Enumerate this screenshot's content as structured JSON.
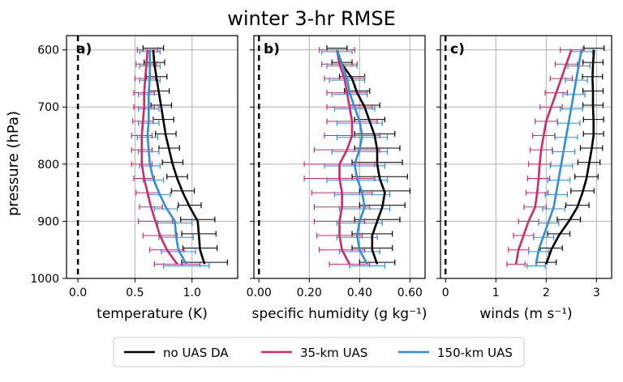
{
  "figure": {
    "title": "winter 3-hr RMSE",
    "ylabel": "pressure (hPa)",
    "legend_position": "bottom-center",
    "legend": [
      {
        "label": "no UAS DA",
        "color": "#000000"
      },
      {
        "label": "35-km UAS",
        "color": "#cc2a6b"
      },
      {
        "label": "150-km UAS",
        "color": "#2f8fd8"
      }
    ]
  },
  "chart_data": [
    {
      "type": "line",
      "panel": "a)",
      "xlabel": "temperature (K)",
      "xlim": [
        -0.1,
        1.4
      ],
      "xticks": [
        0.0,
        0.5,
        1.0
      ],
      "xtick_labels": [
        "0.0",
        "0.5",
        "1.0"
      ],
      "ylabel": "pressure (hPa)",
      "ylim": [
        1000,
        575
      ],
      "yticks": [
        600,
        700,
        800,
        900,
        1000
      ],
      "ytick_labels": [
        "600",
        "700",
        "800",
        "900",
        "1000"
      ],
      "grid": true,
      "zero_line": 0.0,
      "y": [
        600,
        625,
        650,
        675,
        700,
        725,
        750,
        775,
        800,
        825,
        850,
        875,
        900,
        925,
        950,
        975
      ],
      "series": [
        {
          "name": "no UAS DA",
          "color": "#000000",
          "values": [
            0.66,
            0.67,
            0.69,
            0.71,
            0.73,
            0.75,
            0.77,
            0.8,
            0.83,
            0.87,
            0.92,
            0.98,
            1.05,
            1.06,
            1.07,
            1.11
          ],
          "err": [
            0.09,
            0.09,
            0.09,
            0.09,
            0.09,
            0.09,
            0.09,
            0.09,
            0.09,
            0.09,
            0.1,
            0.1,
            0.15,
            0.15,
            0.15,
            0.2
          ]
        },
        {
          "name": "35-km UAS",
          "color": "#cc2a6b",
          "values": [
            0.61,
            0.6,
            0.59,
            0.58,
            0.58,
            0.57,
            0.56,
            0.56,
            0.56,
            0.58,
            0.61,
            0.64,
            0.68,
            0.72,
            0.78,
            0.87
          ],
          "err": [
            0.09,
            0.09,
            0.09,
            0.09,
            0.09,
            0.09,
            0.09,
            0.09,
            0.09,
            0.09,
            0.1,
            0.1,
            0.15,
            0.15,
            0.15,
            0.2
          ]
        },
        {
          "name": "150-km UAS",
          "color": "#2f8fd8",
          "values": [
            0.63,
            0.63,
            0.63,
            0.62,
            0.62,
            0.62,
            0.61,
            0.62,
            0.63,
            0.66,
            0.71,
            0.77,
            0.85,
            0.86,
            0.88,
            0.95
          ],
          "err": [
            0.09,
            0.09,
            0.09,
            0.09,
            0.09,
            0.09,
            0.09,
            0.09,
            0.09,
            0.09,
            0.1,
            0.1,
            0.15,
            0.15,
            0.15,
            0.2
          ]
        }
      ]
    },
    {
      "type": "line",
      "panel": "b)",
      "xlabel": "specific humidity (g kg⁻¹)",
      "xlim": [
        -0.02,
        0.66
      ],
      "xticks": [
        0.0,
        0.2,
        0.4,
        0.6
      ],
      "xtick_labels": [
        "0.00",
        "0.20",
        "0.40",
        "0.60"
      ],
      "ylim": [
        1000,
        575
      ],
      "grid": true,
      "zero_line": 0.0,
      "y": [
        600,
        625,
        650,
        675,
        700,
        725,
        750,
        775,
        800,
        825,
        850,
        875,
        900,
        925,
        950,
        975
      ],
      "series": [
        {
          "name": "no UAS DA",
          "color": "#000000",
          "values": [
            0.31,
            0.33,
            0.37,
            0.39,
            0.42,
            0.44,
            0.46,
            0.47,
            0.47,
            0.48,
            0.5,
            0.49,
            0.47,
            0.45,
            0.45,
            0.47
          ],
          "err": [
            0.04,
            0.04,
            0.05,
            0.05,
            0.06,
            0.06,
            0.08,
            0.09,
            0.1,
            0.11,
            0.1,
            0.09,
            0.09,
            0.08,
            0.08,
            0.07
          ]
        },
        {
          "name": "35-km UAS",
          "color": "#cc2a6b",
          "values": [
            0.31,
            0.32,
            0.34,
            0.35,
            0.36,
            0.37,
            0.37,
            0.35,
            0.32,
            0.32,
            0.33,
            0.33,
            0.32,
            0.32,
            0.33,
            0.36
          ],
          "err": [
            0.07,
            0.07,
            0.08,
            0.08,
            0.09,
            0.1,
            0.11,
            0.13,
            0.14,
            0.14,
            0.12,
            0.11,
            0.1,
            0.09,
            0.09,
            0.08
          ]
        },
        {
          "name": "150-km UAS",
          "color": "#2f8fd8",
          "values": [
            0.31,
            0.33,
            0.35,
            0.36,
            0.38,
            0.4,
            0.41,
            0.4,
            0.38,
            0.39,
            0.41,
            0.42,
            0.4,
            0.39,
            0.4,
            0.43
          ],
          "err": [
            0.06,
            0.06,
            0.07,
            0.07,
            0.08,
            0.09,
            0.1,
            0.11,
            0.12,
            0.12,
            0.11,
            0.1,
            0.09,
            0.08,
            0.08,
            0.07
          ]
        }
      ]
    },
    {
      "type": "line",
      "panel": "c)",
      "xlabel": "winds (m s⁻¹)",
      "xlim": [
        -0.1,
        3.3
      ],
      "xticks": [
        0,
        1,
        2,
        3
      ],
      "xtick_labels": [
        "0",
        "1",
        "2",
        "3"
      ],
      "ylim": [
        1000,
        575
      ],
      "grid": true,
      "zero_line": 0.0,
      "y": [
        600,
        625,
        650,
        675,
        700,
        725,
        750,
        775,
        800,
        825,
        850,
        875,
        900,
        925,
        950,
        975
      ],
      "series": [
        {
          "name": "no UAS DA",
          "color": "#000000",
          "values": [
            2.95,
            2.93,
            2.92,
            2.93,
            2.93,
            2.94,
            2.94,
            2.9,
            2.85,
            2.8,
            2.72,
            2.62,
            2.45,
            2.25,
            2.1,
            2.0
          ],
          "err": [
            0.2,
            0.2,
            0.2,
            0.2,
            0.2,
            0.2,
            0.2,
            0.22,
            0.22,
            0.23,
            0.23,
            0.23,
            0.23,
            0.22,
            0.22,
            0.2
          ]
        },
        {
          "name": "35-km UAS",
          "color": "#cc2a6b",
          "values": [
            2.5,
            2.4,
            2.3,
            2.2,
            2.1,
            2.0,
            1.95,
            1.9,
            1.87,
            1.85,
            1.82,
            1.78,
            1.65,
            1.55,
            1.45,
            1.4
          ],
          "err": [
            0.22,
            0.22,
            0.22,
            0.22,
            0.22,
            0.22,
            0.22,
            0.22,
            0.22,
            0.22,
            0.22,
            0.22,
            0.2,
            0.2,
            0.2,
            0.18
          ]
        },
        {
          "name": "150-km UAS",
          "color": "#2f8fd8",
          "values": [
            2.7,
            2.65,
            2.6,
            2.55,
            2.5,
            2.45,
            2.4,
            2.35,
            2.3,
            2.25,
            2.2,
            2.15,
            2.05,
            1.95,
            1.85,
            1.8
          ],
          "err": [
            0.22,
            0.22,
            0.22,
            0.22,
            0.22,
            0.22,
            0.22,
            0.22,
            0.22,
            0.22,
            0.22,
            0.22,
            0.2,
            0.2,
            0.2,
            0.18
          ]
        }
      ]
    }
  ]
}
